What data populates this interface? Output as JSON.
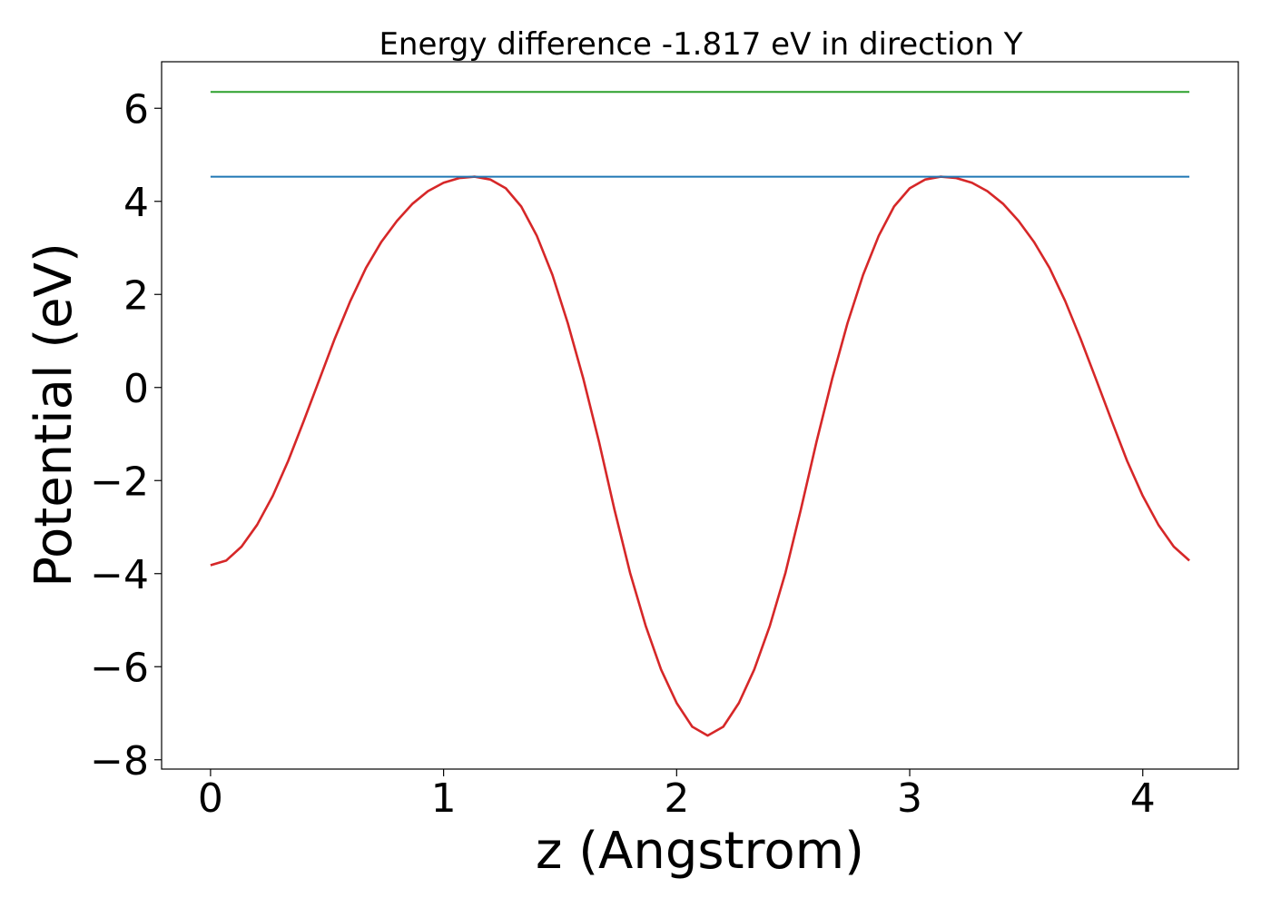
{
  "chart_data": {
    "type": "line",
    "title": "Energy difference -1.817 eV in direction Y",
    "xlabel": "z (Angstrom)",
    "ylabel": "Potential (eV)",
    "xlim": [
      -0.21,
      4.41
    ],
    "ylim": [
      -8.2,
      7.0
    ],
    "xticks": [
      0,
      1,
      2,
      3,
      4
    ],
    "xtick_labels": [
      "0",
      "1",
      "2",
      "3",
      "4"
    ],
    "yticks": [
      -8,
      -6,
      -4,
      -2,
      0,
      2,
      4,
      6
    ],
    "ytick_labels": [
      "−8",
      "−6",
      "−4",
      "−2",
      "0",
      "2",
      "4",
      "6"
    ],
    "grid": false,
    "legend": "none",
    "series": [
      {
        "color": "#d62728",
        "x": [
          0.0,
          0.067,
          0.133,
          0.2,
          0.267,
          0.333,
          0.4,
          0.467,
          0.533,
          0.6,
          0.667,
          0.733,
          0.8,
          0.867,
          0.933,
          1.0,
          1.067,
          1.133,
          1.2,
          1.267,
          1.333,
          1.4,
          1.467,
          1.533,
          1.6,
          1.667,
          1.733,
          1.8,
          1.867,
          1.933,
          2.0,
          2.067,
          2.133,
          2.2,
          2.267,
          2.333,
          2.4,
          2.467,
          2.533,
          2.6,
          2.667,
          2.733,
          2.8,
          2.867,
          2.933,
          3.0,
          3.067,
          3.133,
          3.2,
          3.267,
          3.333,
          3.4,
          3.467,
          3.533,
          3.6,
          3.667,
          3.733,
          3.8,
          3.867,
          3.933,
          4.0,
          4.067,
          4.133,
          4.2
        ],
        "y": [
          -3.82,
          -3.72,
          -3.42,
          -2.95,
          -2.33,
          -1.58,
          -0.72,
          0.17,
          1.05,
          1.86,
          2.57,
          3.13,
          3.58,
          3.95,
          4.22,
          4.4,
          4.5,
          4.53,
          4.47,
          4.28,
          3.89,
          3.26,
          2.42,
          1.38,
          0.18,
          -1.17,
          -2.62,
          -3.98,
          -5.12,
          -6.06,
          -6.78,
          -7.29,
          -7.48,
          -7.29,
          -6.78,
          -6.06,
          -5.12,
          -3.98,
          -2.62,
          -1.17,
          0.18,
          1.38,
          2.42,
          3.26,
          3.89,
          4.28,
          4.47,
          4.53,
          4.5,
          4.4,
          4.22,
          3.95,
          3.58,
          3.13,
          2.57,
          1.86,
          1.05,
          0.17,
          -0.72,
          -1.58,
          -2.33,
          -2.95,
          -3.42,
          -3.72
        ]
      },
      {
        "color": "#1f77b4",
        "x": [
          0.0,
          4.2
        ],
        "y": [
          4.53,
          4.53
        ]
      },
      {
        "color": "#2ca02c",
        "x": [
          0.0,
          4.2
        ],
        "y": [
          6.35,
          6.35
        ]
      }
    ]
  }
}
